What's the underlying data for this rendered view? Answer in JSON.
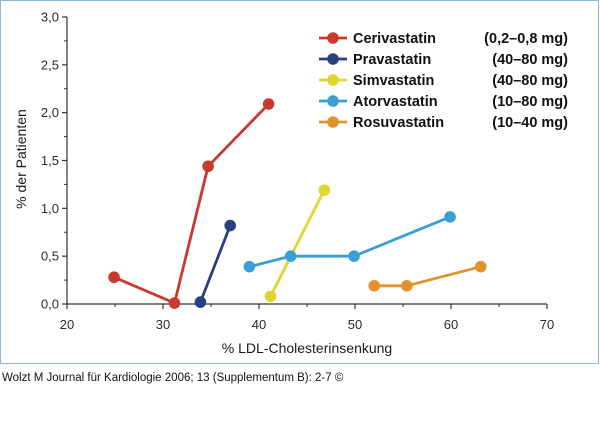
{
  "chart_data": {
    "type": "line",
    "xlabel": "% LDL-Cholesterinsenkung",
    "ylabel": "% der Patienten",
    "xlim": [
      20,
      70
    ],
    "ylim": [
      0,
      3.0
    ],
    "xticks": [
      20,
      30,
      40,
      50,
      60,
      70
    ],
    "xtick_labels": [
      "20",
      "30",
      "40",
      "50",
      "60",
      "70"
    ],
    "yticks": [
      0,
      0.5,
      1.0,
      1.5,
      2.0,
      2.5,
      3.0
    ],
    "ytick_labels": [
      "0,0",
      "0,5",
      "1,0",
      "1,5",
      "2,0",
      "2,5",
      "3,0"
    ],
    "legend_position": "top-right",
    "series": [
      {
        "name": "Cerivastatin",
        "range": "(0,2–0,8 mg)",
        "color": "#c83a2e",
        "points": [
          [
            24.9,
            0.28
          ],
          [
            31.2,
            0.01
          ],
          [
            34.7,
            1.44
          ],
          [
            41.0,
            2.09
          ]
        ]
      },
      {
        "name": "Pravastatin",
        "range": "(40–80 mg)",
        "color": "#27417f",
        "points": [
          [
            33.9,
            0.02
          ],
          [
            37.0,
            0.82
          ]
        ]
      },
      {
        "name": "Simvastatin",
        "range": "(40–80 mg)",
        "color": "#e0d52e",
        "points": [
          [
            41.2,
            0.08
          ],
          [
            46.8,
            1.19
          ]
        ]
      },
      {
        "name": "Atorvastatin",
        "range": "(10–80 mg)",
        "color": "#3a9fd4",
        "points": [
          [
            39.0,
            0.39
          ],
          [
            43.3,
            0.5
          ],
          [
            49.9,
            0.5
          ],
          [
            59.9,
            0.91
          ]
        ]
      },
      {
        "name": "Rosuvastatin",
        "range": "(10–40 mg)",
        "color": "#e0922e",
        "points": [
          [
            52.0,
            0.19
          ],
          [
            55.4,
            0.19
          ],
          [
            63.1,
            0.39
          ]
        ]
      }
    ]
  },
  "caption": "Wolzt M Journal für Kardiologie 2006; 13 (Supplementum B): 2-7 ©"
}
